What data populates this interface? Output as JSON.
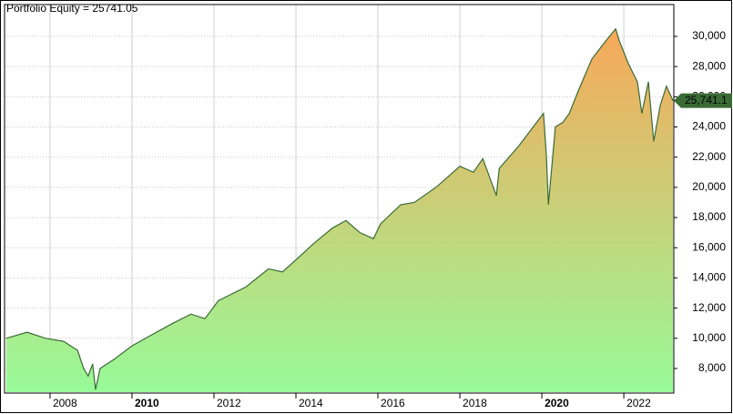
{
  "chart_data": {
    "type": "area",
    "title": "Portfolio Equity = 25741.05",
    "x": [
      2006.93,
      2007.44,
      2007.89,
      2008.33,
      2008.67,
      2008.82,
      2008.93,
      2009.04,
      2009.11,
      2009.22,
      2009.56,
      2010.0,
      2010.33,
      2011.0,
      2011.44,
      2011.78,
      2012.11,
      2012.78,
      2013.33,
      2013.67,
      2014.0,
      2014.44,
      2014.89,
      2015.22,
      2015.56,
      2015.89,
      2016.07,
      2016.56,
      2016.89,
      2017.44,
      2018.0,
      2018.33,
      2018.56,
      2018.89,
      2018.96,
      2019.44,
      2020.04,
      2020.11,
      2020.16,
      2020.33,
      2020.51,
      2020.67,
      2020.89,
      2021.22,
      2021.56,
      2021.8,
      2021.89,
      2022.11,
      2022.33,
      2022.44,
      2022.6,
      2022.73,
      2022.89,
      2023.04,
      2023.2
    ],
    "series": [
      {
        "name": "Portfolio Equity",
        "color": "#3a6b35",
        "values": [
          10000,
          10400,
          10000,
          9800,
          9200,
          8000,
          7500,
          8300,
          6600,
          8000,
          8600,
          9500,
          10000,
          11000,
          11600,
          11300,
          12500,
          13400,
          14600,
          14400,
          15200,
          16300,
          17300,
          17800,
          17000,
          16600,
          17600,
          18850,
          19000,
          20050,
          21400,
          21000,
          21900,
          19450,
          21250,
          22750,
          24900,
          22150,
          18850,
          24000,
          24300,
          24900,
          26400,
          28500,
          29700,
          30500,
          29700,
          28200,
          27000,
          24900,
          27000,
          23050,
          25450,
          26700,
          25741.05
        ]
      }
    ],
    "last_label": "25,741.1",
    "xlim": [
      2006.89,
      2023.22
    ],
    "xticks": [
      2008,
      2010,
      2012,
      2014,
      2016,
      2018,
      2020,
      2022
    ],
    "ylim": [
      6370,
      32110
    ],
    "yticks": [
      {
        "value": 8000,
        "label": "8,000"
      },
      {
        "value": 10000,
        "label": "10,000"
      },
      {
        "value": 12000,
        "label": "12,000"
      },
      {
        "value": 14000,
        "label": "14,000"
      },
      {
        "value": 16000,
        "label": "16,000"
      },
      {
        "value": 18000,
        "label": "18,000"
      },
      {
        "value": 20000,
        "label": "20,000"
      },
      {
        "value": 22000,
        "label": "22,000"
      },
      {
        "value": 24000,
        "label": "24,000"
      },
      {
        "value": 26000,
        "label": "26,000"
      },
      {
        "value": 28000,
        "label": "28,000"
      },
      {
        "value": 30000,
        "label": "30,000"
      }
    ],
    "grid": true,
    "fill_gradient": [
      "#98fa98",
      "#f7a85a"
    ]
  }
}
